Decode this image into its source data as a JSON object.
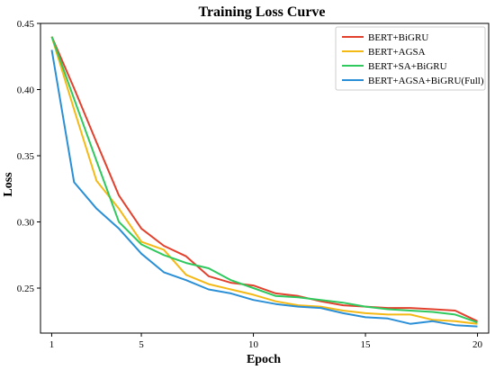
{
  "chart_data": {
    "type": "line",
    "title": "Training Loss Curve",
    "xlabel": "Epoch",
    "ylabel": "Loss",
    "xlim": [
      0.5,
      20.5
    ],
    "ylim": [
      0.216,
      0.45
    ],
    "xticks": [
      1,
      5,
      10,
      15,
      20
    ],
    "yticks": [
      0.25,
      0.3,
      0.35,
      0.4,
      0.45
    ],
    "ytick_labels": [
      "0.25",
      "0.30",
      "0.35",
      "0.40",
      "0.45"
    ],
    "grid": false,
    "legend_position": "top-right",
    "x": [
      1,
      2,
      3,
      4,
      5,
      6,
      7,
      8,
      9,
      10,
      11,
      12,
      13,
      14,
      15,
      16,
      17,
      18,
      19,
      20
    ],
    "series": [
      {
        "name": "BERT+BiGRU",
        "color": "#e2412e",
        "values": [
          0.44,
          0.401,
          0.36,
          0.32,
          0.295,
          0.282,
          0.274,
          0.259,
          0.254,
          0.252,
          0.246,
          0.244,
          0.24,
          0.237,
          0.236,
          0.235,
          0.235,
          0.234,
          0.233,
          0.225
        ]
      },
      {
        "name": "BERT+AGSA",
        "color": "#f5b916",
        "values": [
          0.44,
          0.385,
          0.331,
          0.31,
          0.285,
          0.279,
          0.26,
          0.253,
          0.249,
          0.245,
          0.24,
          0.237,
          0.236,
          0.233,
          0.231,
          0.23,
          0.23,
          0.226,
          0.225,
          0.223
        ]
      },
      {
        "name": "BERT+SA+BiGRU",
        "color": "#2fc95e",
        "values": [
          0.44,
          0.393,
          0.346,
          0.3,
          0.283,
          0.275,
          0.269,
          0.265,
          0.256,
          0.25,
          0.244,
          0.243,
          0.241,
          0.239,
          0.236,
          0.234,
          0.233,
          0.232,
          0.23,
          0.224
        ]
      },
      {
        "name": "BERT+AGSA+BiGRU(Full)",
        "color": "#2a8fd6",
        "values": [
          0.43,
          0.33,
          0.31,
          0.295,
          0.276,
          0.262,
          0.256,
          0.249,
          0.246,
          0.241,
          0.238,
          0.236,
          0.235,
          0.231,
          0.228,
          0.227,
          0.223,
          0.225,
          0.222,
          0.221
        ]
      }
    ]
  }
}
